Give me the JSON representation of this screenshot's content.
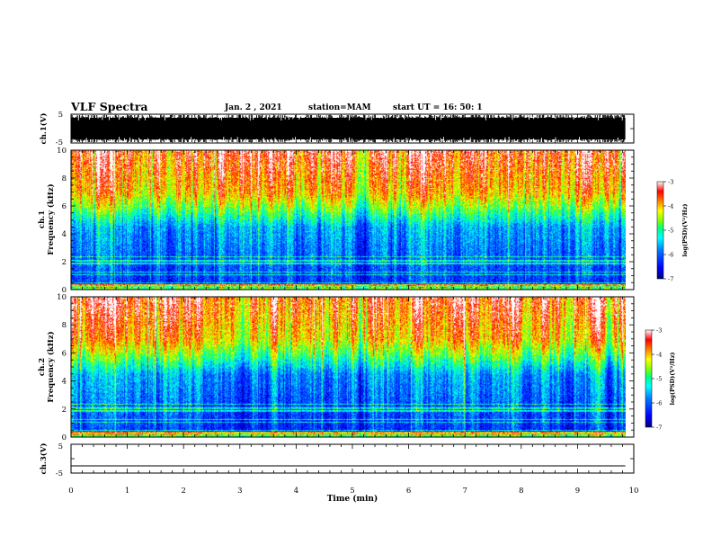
{
  "header": {
    "title": "VLF Spectra",
    "date": "Jan. 2 , 2021",
    "station": "station=MAM",
    "start": "start UT = 16: 50: 1"
  },
  "colors": {
    "waveform": "#000000",
    "colormap": [
      "#00007f",
      "#0000ff",
      "#0080ff",
      "#00ffff",
      "#00ff80",
      "#80ff00",
      "#ffff00",
      "#ff8000",
      "#ff0000",
      "#ffffff"
    ]
  },
  "chart_data": [
    {
      "type": "line",
      "panel": "ch1-waveform",
      "ylabel": "ch.1(V)",
      "ylim": [
        -5,
        5
      ],
      "yticks": [
        "5",
        "-5"
      ],
      "xlim": [
        0,
        10
      ],
      "x_unit": "min"
    },
    {
      "type": "heatmap",
      "panel": "ch1-spectrogram",
      "ylabel_line1": "ch.1",
      "ylabel_line2": "Frequency (kHz)",
      "ylim": [
        0,
        10
      ],
      "yticks": [
        "0",
        "2",
        "4",
        "6",
        "8",
        "10"
      ],
      "xlim": [
        0,
        10
      ],
      "data_extent_x": 9.85,
      "colorbar": {
        "label": "log(PSD)(V²/Hz)",
        "range": [
          -7,
          -3
        ],
        "ticks": [
          "-3",
          "-4",
          "-5",
          "-6",
          "-7"
        ]
      }
    },
    {
      "type": "heatmap",
      "panel": "ch2-spectrogram",
      "ylabel_line1": "ch.2",
      "ylabel_line2": "Frequency (kHz)",
      "ylim": [
        0,
        10
      ],
      "yticks": [
        "0",
        "2",
        "4",
        "6",
        "8",
        "10"
      ],
      "xlim": [
        0,
        10
      ],
      "data_extent_x": 9.85,
      "colorbar": {
        "label": "log(PSD)(V²/Hz)",
        "range": [
          -7,
          -3
        ],
        "ticks": [
          "-3",
          "-4",
          "-5",
          "-6",
          "-7"
        ]
      }
    },
    {
      "type": "line",
      "panel": "ch3-waveform",
      "ylabel": "ch.3(V)",
      "ylim": [
        -5,
        5
      ],
      "yticks": [
        "5",
        "-5"
      ],
      "xlim": [
        0,
        10
      ],
      "series": [
        {
          "x": [
            0,
            9.85
          ],
          "y": [
            -2.5,
            -2.5
          ]
        }
      ]
    }
  ],
  "xaxis": {
    "label": "Time (min)",
    "ticks": [
      "0",
      "1",
      "2",
      "3",
      "4",
      "5",
      "6",
      "7",
      "8",
      "9",
      "10"
    ]
  }
}
